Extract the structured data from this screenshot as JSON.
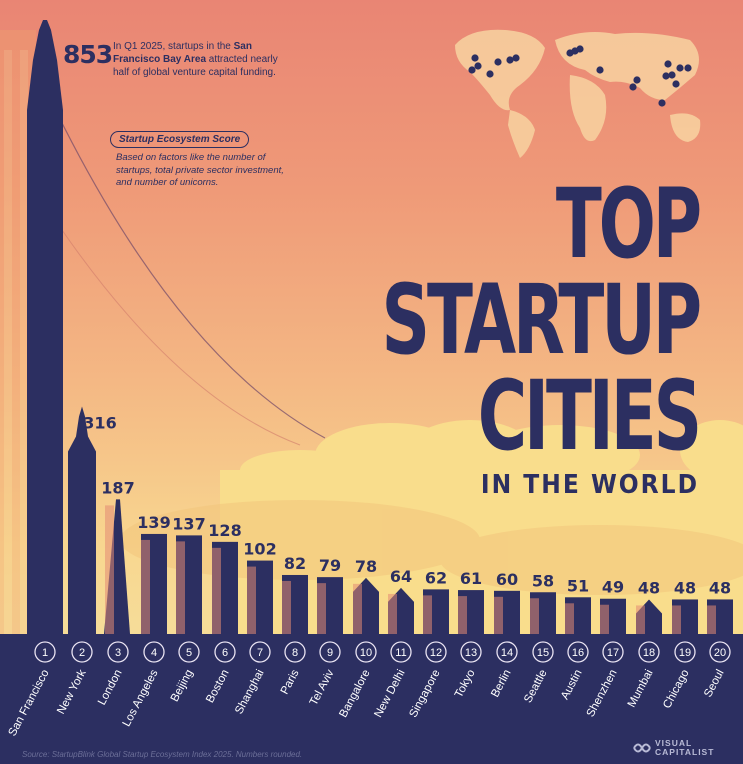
{
  "title": {
    "line1": "TOP",
    "line2": "STARTUP",
    "line3": "CITIES",
    "subtitle": "IN THE WORLD"
  },
  "annotation": {
    "top_value": "853",
    "text_pre": "In Q1 2025, startups in the",
    "text_bold": "San Francisco Bay Area",
    "text_post": "attracted nearly half of global venture capital funding."
  },
  "score_label": "Startup Ecosystem Score",
  "score_description": "Based on factors like the number of startups, total private sector investment, and number of unicorns.",
  "source": "Source: StartupBlink Global Startup Ecosystem Index 2025. Numbers rounded.",
  "logo": {
    "line1": "VISUAL",
    "line2": "CAPITALIST"
  },
  "colors": {
    "navy": "#2c2f61",
    "navy_light": "#3d4180",
    "cloud": "#f9dd8c",
    "bg_top": "#e98574",
    "bg_bottom": "#f6dc98"
  },
  "chart_data": {
    "type": "bar",
    "value_label": "Startup Ecosystem Score",
    "categories": [
      "San Francisco",
      "New York",
      "London",
      "Los Angeles",
      "Beijing",
      "Boston",
      "Shanghai",
      "Paris",
      "Tel Aviv",
      "Bangalore",
      "New Delhi",
      "Singapore",
      "Tokyo",
      "Berlin",
      "Seattle",
      "Austin",
      "Shenzhen",
      "Mumbai",
      "Chicago",
      "Seoul"
    ],
    "ranks": [
      "1",
      "2",
      "3",
      "4",
      "5",
      "6",
      "7",
      "8",
      "9",
      "10",
      "11",
      "12",
      "13",
      "14",
      "15",
      "16",
      "17",
      "18",
      "19",
      "20"
    ],
    "values": [
      853,
      316,
      187,
      139,
      137,
      128,
      102,
      82,
      79,
      78,
      64,
      62,
      61,
      60,
      58,
      51,
      49,
      48,
      48,
      48
    ],
    "value_labels": [
      "853",
      "316",
      "187",
      "139",
      "137",
      "128",
      "102",
      "82",
      "79",
      "78",
      "64",
      "62",
      "61",
      "60",
      "58",
      "51",
      "49",
      "48",
      "48",
      "48"
    ],
    "legend": "none",
    "grid": false
  }
}
